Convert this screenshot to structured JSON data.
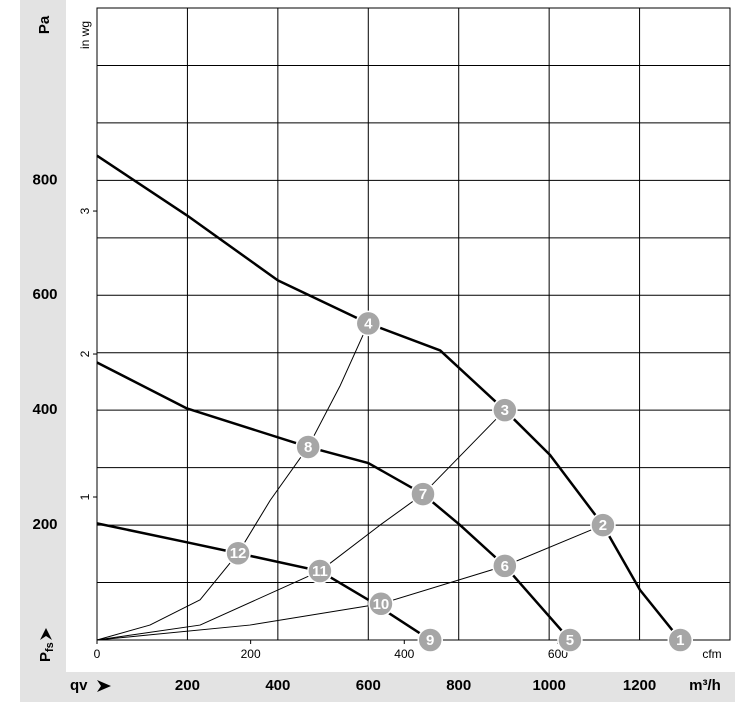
{
  "chart_data": {
    "type": "line",
    "y_unit": "Pa",
    "y2_unit": "in wg",
    "x_unit": "m³/h",
    "x2_unit": "cfm",
    "y_label": {
      "main": "P",
      "sub": "fs"
    },
    "x_label": "qv",
    "xlim": [
      0,
      1400
    ],
    "xticks": [
      200,
      400,
      600,
      800,
      1000,
      1200
    ],
    "ylim": [
      0,
      1100
    ],
    "yticks": [
      200,
      400,
      600,
      800
    ],
    "yticks_minor": [
      100,
      300,
      500,
      700,
      900,
      1000
    ],
    "x2lim": [
      0,
      824
    ],
    "x2ticks": [
      0,
      200,
      400,
      600
    ],
    "y2lim": [
      0,
      4.42
    ],
    "y2ticks": [
      1,
      2,
      3
    ],
    "grid": true,
    "series": [
      {
        "color": "#000000",
        "width": 2.5,
        "x": [
          0,
          199,
          400,
          600,
          759,
          902,
          1002,
          1119,
          1201,
          1290
        ],
        "values": [
          843,
          739,
          626,
          551,
          504,
          400,
          322,
          200,
          87,
          0
        ]
      },
      {
        "color": "#000000",
        "width": 2.5,
        "x": [
          0,
          199,
          467,
          600,
          721,
          803,
          902,
          1046
        ],
        "values": [
          483,
          403,
          336,
          308,
          254,
          200,
          129,
          0
        ]
      },
      {
        "color": "#000000",
        "width": 2.5,
        "x": [
          0,
          199,
          312,
          493,
          600,
          737
        ],
        "values": [
          203,
          170,
          151,
          120,
          70,
          0
        ]
      },
      {
        "color": "#000000",
        "width": 1,
        "x": [
          0,
          117,
          228,
          312,
          383,
          467,
          538,
          600
        ],
        "values": [
          0,
          26,
          70,
          151,
          243,
          336,
          443,
          551
        ]
      },
      {
        "color": "#000000",
        "width": 1,
        "x": [
          0,
          228,
          493,
          626,
          721,
          902
        ],
        "values": [
          0,
          26,
          120,
          200,
          254,
          400
        ]
      },
      {
        "color": "#000000",
        "width": 1,
        "x": [
          0,
          338,
          628,
          902,
          1119
        ],
        "values": [
          0,
          26,
          63,
          129,
          200
        ]
      }
    ],
    "points": [
      {
        "label": "1",
        "x": 1290,
        "y": 0
      },
      {
        "label": "2",
        "x": 1119,
        "y": 200
      },
      {
        "label": "3",
        "x": 902,
        "y": 400
      },
      {
        "label": "4",
        "x": 600,
        "y": 551
      },
      {
        "label": "5",
        "x": 1046,
        "y": 0
      },
      {
        "label": "6",
        "x": 902,
        "y": 129
      },
      {
        "label": "7",
        "x": 721,
        "y": 254
      },
      {
        "label": "8",
        "x": 467,
        "y": 336
      },
      {
        "label": "9",
        "x": 737,
        "y": 0
      },
      {
        "label": "10",
        "x": 628,
        "y": 63
      },
      {
        "label": "11",
        "x": 493,
        "y": 120
      },
      {
        "label": "12",
        "x": 312,
        "y": 151
      }
    ],
    "point_color": "#a6a6a6"
  }
}
